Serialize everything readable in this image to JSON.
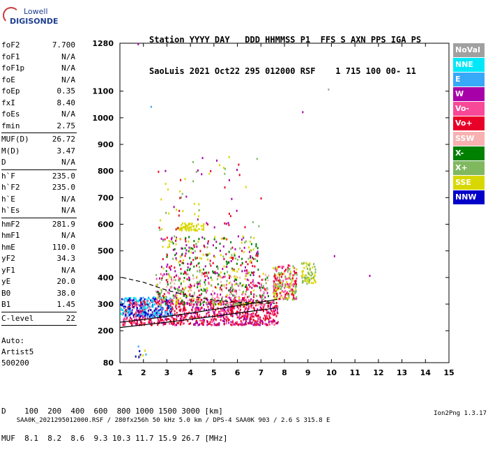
{
  "logo": {
    "top": "Lowell",
    "bottom": "DIGISONDE"
  },
  "header": {
    "row1": "Station YYYY DAY   DDD HHMMSS P1  FFS S AXN PPS IGA PS",
    "row2": "SaoLuis 2021 Oct22 295 012000 RSF    1 715 100 00- 11"
  },
  "params": [
    {
      "label": "foF2",
      "value": "7.700"
    },
    {
      "label": "foF1",
      "value": "N/A"
    },
    {
      "label": "foF1p",
      "value": "N/A"
    },
    {
      "label": "foE",
      "value": "N/A"
    },
    {
      "label": "foEp",
      "value": "0.35"
    },
    {
      "label": "fxI",
      "value": "8.40"
    },
    {
      "label": "foEs",
      "value": "N/A"
    },
    {
      "label": "fmin",
      "value": "2.75"
    },
    {
      "sep": true
    },
    {
      "label": "MUF(D)",
      "value": "26.72"
    },
    {
      "label": "M(D)",
      "value": "3.47"
    },
    {
      "label": "D",
      "value": "N/A"
    },
    {
      "sep": true
    },
    {
      "label": "h`F",
      "value": "235.0"
    },
    {
      "label": "h`F2",
      "value": "235.0"
    },
    {
      "label": "h`E",
      "value": "N/A"
    },
    {
      "label": "h`Es",
      "value": "N/A"
    },
    {
      "sep": true
    },
    {
      "label": "hmF2",
      "value": "281.9"
    },
    {
      "label": "hmF1",
      "value": "N/A"
    },
    {
      "label": "hmE",
      "value": "110.0"
    },
    {
      "label": "yF2",
      "value": "34.3"
    },
    {
      "label": "yF1",
      "value": "N/A"
    },
    {
      "label": "yE",
      "value": "20.0"
    },
    {
      "label": "B0",
      "value": "38.0"
    },
    {
      "label": "B1",
      "value": "1.45"
    },
    {
      "sep": true
    },
    {
      "label": "C-level",
      "value": "22"
    },
    {
      "sep": true
    }
  ],
  "auto": {
    "line1": "Auto:",
    "line2": "Artist5",
    "line3": "500200"
  },
  "muf_table": {
    "row1": "D    100  200  400  600  800 1000 1500 3000 [km]",
    "row2": "MUF  8.1  8.2  8.6  9.3 10.3 11.7 15.9 26.7 [MHz]"
  },
  "footer": {
    "left": "SAA0K_2021295012000.RSF / 280fx256h 50 kHz 5.0 km / DPS-4 SAA0K 903 / 2.6 S 315.8 E",
    "right": "Ion2Png 1.3.17"
  },
  "legend": [
    {
      "label": "NoVal",
      "color": "#a0a0a0"
    },
    {
      "label": "NNE",
      "color": "#00e8f8"
    },
    {
      "label": "E",
      "color": "#38a8f8"
    },
    {
      "label": "W",
      "color": "#a800a8"
    },
    {
      "label": "Vo-",
      "color": "#f84898"
    },
    {
      "label": "Vo+",
      "color": "#e80028"
    },
    {
      "label": "SSW",
      "color": "#f8b0b0"
    },
    {
      "label": "X-",
      "color": "#008000"
    },
    {
      "label": "X+",
      "color": "#80b860"
    },
    {
      "label": "SSE",
      "color": "#d8d800"
    },
    {
      "label": "NNW",
      "color": "#0000c8"
    }
  ],
  "chart_data": {
    "type": "scatter",
    "title": "",
    "xlabel": "",
    "ylabel": "",
    "xlim": [
      1,
      15
    ],
    "ylim": [
      80,
      1280
    ],
    "x_ticks": [
      1,
      2,
      3,
      4,
      5,
      6,
      7,
      8,
      9,
      10,
      11,
      12,
      13,
      14,
      15
    ],
    "y_ticks": [
      80,
      200,
      300,
      400,
      500,
      600,
      700,
      800,
      900,
      1000,
      1100,
      1280
    ],
    "trace_lower": [
      [
        1.0,
        212
      ],
      [
        2.0,
        222
      ],
      [
        3.0,
        232
      ],
      [
        4.0,
        243
      ],
      [
        5.0,
        254
      ],
      [
        6.0,
        266
      ],
      [
        7.0,
        278
      ],
      [
        7.7,
        286
      ]
    ],
    "trace_upper": [
      [
        1.0,
        232
      ],
      [
        2.0,
        242
      ],
      [
        3.0,
        254
      ],
      [
        4.0,
        266
      ],
      [
        5.0,
        280
      ],
      [
        6.0,
        294
      ],
      [
        7.0,
        308
      ],
      [
        7.7,
        318
      ]
    ],
    "trace_dashed": [
      [
        1.1,
        400
      ],
      [
        2.0,
        382
      ],
      [
        3.0,
        352
      ],
      [
        4.0,
        330
      ],
      [
        5.0,
        315
      ],
      [
        6.0,
        307
      ],
      [
        7.0,
        304
      ],
      [
        7.6,
        303
      ]
    ],
    "echo_clusters": [
      {
        "x": [
          1.1,
          7.7
        ],
        "y": [
          225,
          320
        ],
        "count": 900,
        "colors": [
          "#e80028",
          "#f84898",
          "#a800a8",
          "#e80028"
        ]
      },
      {
        "x": [
          1.0,
          3.2
        ],
        "y": [
          255,
          330
        ],
        "count": 220,
        "colors": [
          "#38a8f8",
          "#00e8f8",
          "#0000c8"
        ]
      },
      {
        "x": [
          2.5,
          7.3
        ],
        "y": [
          300,
          420
        ],
        "count": 500,
        "colors": [
          "#e80028",
          "#f84898",
          "#d8d800",
          "#80b860",
          "#a800a8",
          "#f8b0b0",
          "#008000"
        ]
      },
      {
        "x": [
          7.5,
          8.5
        ],
        "y": [
          320,
          450
        ],
        "count": 220,
        "colors": [
          "#e80028",
          "#f84898",
          "#d8d800",
          "#80b860"
        ]
      },
      {
        "x": [
          8.7,
          9.3
        ],
        "y": [
          380,
          460
        ],
        "count": 70,
        "colors": [
          "#d8d800",
          "#80b860"
        ]
      },
      {
        "x": [
          2.7,
          6.9
        ],
        "y": [
          420,
          560
        ],
        "count": 260,
        "colors": [
          "#a800a8",
          "#e80028",
          "#80b860",
          "#d8d800",
          "#008000"
        ]
      },
      {
        "x": [
          3.5,
          4.6
        ],
        "y": [
          580,
          610
        ],
        "count": 60,
        "colors": [
          "#d8d800"
        ]
      },
      {
        "x": [
          2.6,
          7.0
        ],
        "y": [
          580,
          860
        ],
        "count": 70,
        "colors": [
          "#a800a8",
          "#e80028",
          "#d8d800",
          "#80b860"
        ]
      },
      {
        "x": [
          1.6,
          2.1
        ],
        "y": [
          90,
          160
        ],
        "count": 10,
        "colors": [
          "#0000c8",
          "#38a8f8",
          "#d8d800"
        ]
      }
    ],
    "isolated_points": [
      {
        "x": 1.75,
        "y": 1280,
        "color": "#a800a8"
      },
      {
        "x": 2.3,
        "y": 1045,
        "color": "#38a8f8"
      },
      {
        "x": 8.75,
        "y": 1025,
        "color": "#a800a8"
      },
      {
        "x": 9.85,
        "y": 1110,
        "color": "#a0a0a0"
      },
      {
        "x": 11.6,
        "y": 410,
        "color": "#a800a8"
      },
      {
        "x": 10.1,
        "y": 484,
        "color": "#a800a8"
      }
    ]
  }
}
